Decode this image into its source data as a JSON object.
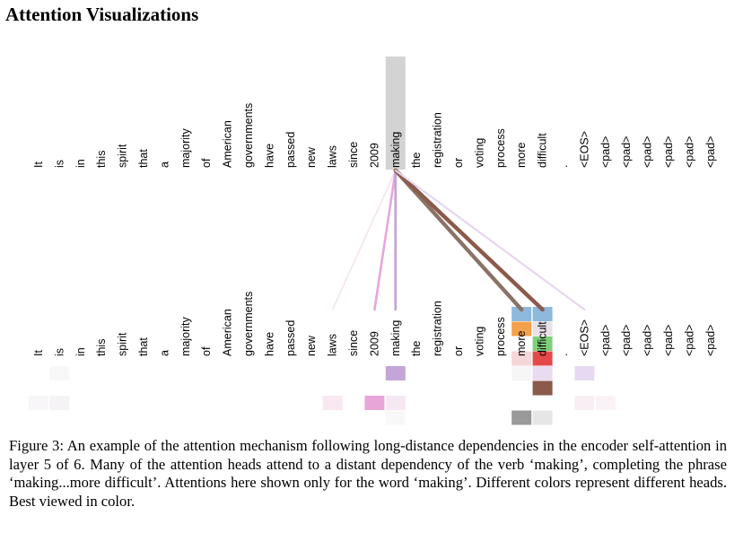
{
  "title": "Attention Visualizations",
  "tokens": [
    "It",
    "is",
    "in",
    "this",
    "spirit",
    "that",
    "a",
    "majority",
    "of",
    "American",
    "governments",
    "have",
    "passed",
    "new",
    "laws",
    "since",
    "2009",
    "making",
    "the",
    "registration",
    "or",
    "voting",
    "process",
    "more",
    "difficult",
    ".",
    "<EOS>",
    "<pad>",
    "<pad>",
    "<pad>",
    "<pad>",
    "<pad>",
    "<pad>"
  ],
  "query_index": 17,
  "query_highlight_color": "#d3d3d3",
  "attention_lines": [
    {
      "target": 14,
      "color": "#f3e3ee",
      "weight": 0.15
    },
    {
      "target": 16,
      "color": "#e8a6d8",
      "weight": 0.45
    },
    {
      "target": 17,
      "color": "#c3a5d8",
      "weight": 0.5
    },
    {
      "target": 23,
      "color": "#8a7266",
      "weight": 0.95
    },
    {
      "target": 24,
      "color": "#8b5a4a",
      "weight": 1.0
    },
    {
      "target": 26,
      "color": "#e6d4f0",
      "weight": 0.3
    }
  ],
  "head_cells": [
    {
      "token": 23,
      "row": 0,
      "color": "#8eb8dc"
    },
    {
      "token": 24,
      "row": 0,
      "color": "#8eb8dc"
    },
    {
      "token": 23,
      "row": 1,
      "color": "#f5a04a"
    },
    {
      "token": 24,
      "row": 1,
      "color": "#e8e1e8"
    },
    {
      "token": 23,
      "row": 2,
      "color": "#ffffff"
    },
    {
      "token": 24,
      "row": 2,
      "color": "#7fcf7a"
    },
    {
      "token": 23,
      "row": 3,
      "color": "#f6d6d6"
    },
    {
      "token": 24,
      "row": 3,
      "color": "#e54848"
    },
    {
      "token": 1,
      "row": 4,
      "color": "#f8f8f8"
    },
    {
      "token": 17,
      "row": 4,
      "color": "#c3a5d8"
    },
    {
      "token": 23,
      "row": 4,
      "color": "#f6f6f6"
    },
    {
      "token": 24,
      "row": 4,
      "color": "#eadcf0"
    },
    {
      "token": 26,
      "row": 4,
      "color": "#e6daf2"
    },
    {
      "token": 24,
      "row": 5,
      "color": "#8b5a4a"
    },
    {
      "token": 0,
      "row": 6,
      "color": "#f8f6f8"
    },
    {
      "token": 1,
      "row": 6,
      "color": "#f6f3f6"
    },
    {
      "token": 14,
      "row": 6,
      "color": "#f9e7f1"
    },
    {
      "token": 16,
      "row": 6,
      "color": "#e8a6d8"
    },
    {
      "token": 17,
      "row": 6,
      "color": "#f6e8f2"
    },
    {
      "token": 26,
      "row": 6,
      "color": "#faeef5"
    },
    {
      "token": 27,
      "row": 6,
      "color": "#fbf2f7"
    },
    {
      "token": 17,
      "row": 7,
      "color": "#f8f8f8"
    },
    {
      "token": 23,
      "row": 7,
      "color": "#999999"
    },
    {
      "token": 24,
      "row": 7,
      "color": "#e6e6e6"
    }
  ],
  "caption": "Figure 3: An example of the attention mechanism following long-distance dependencies in the encoder self-attention in layer 5 of 6. Many of the attention heads attend to a distant dependency of the verb ‘making’, completing the phrase ‘making...more difficult’. Attentions here shown only for the word ‘making’. Different colors represent different heads. Best viewed in color."
}
